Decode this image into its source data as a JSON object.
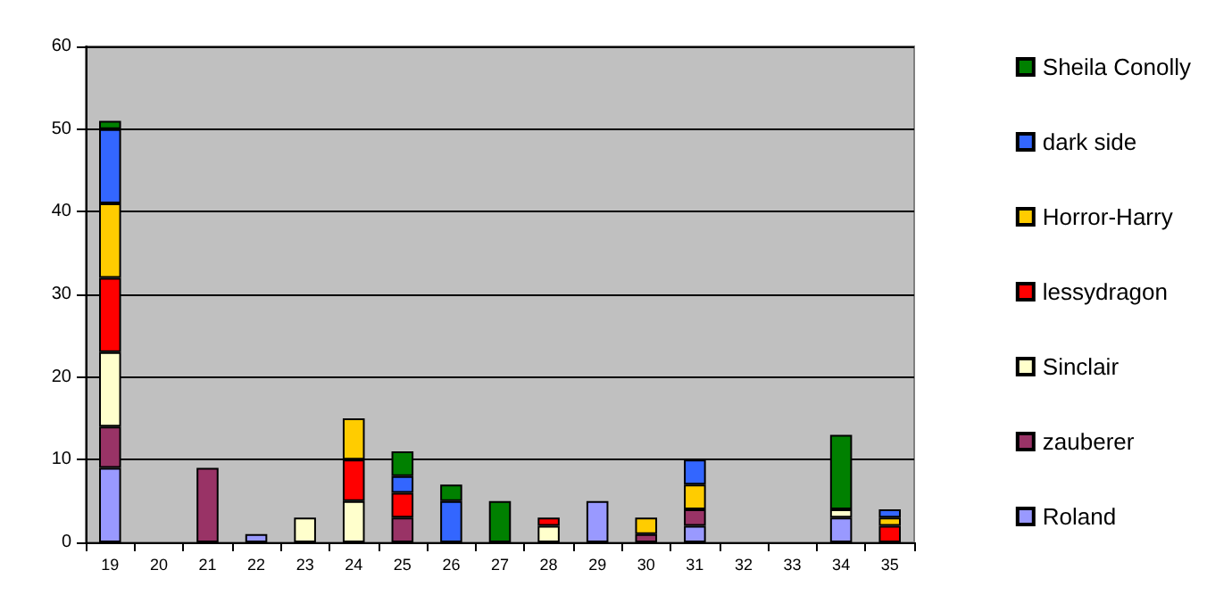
{
  "chart_data": {
    "type": "bar",
    "stacked": true,
    "categories": [
      "19",
      "20",
      "21",
      "22",
      "23",
      "24",
      "25",
      "26",
      "27",
      "28",
      "29",
      "30",
      "31",
      "32",
      "33",
      "34",
      "35"
    ],
    "series": [
      {
        "name": "Roland",
        "color": "#9999ff",
        "values": [
          9,
          null,
          null,
          1,
          null,
          null,
          null,
          null,
          null,
          null,
          5,
          null,
          2,
          null,
          null,
          3,
          null
        ]
      },
      {
        "name": "zauberer",
        "color": "#993366",
        "values": [
          5,
          null,
          9,
          null,
          null,
          null,
          3,
          null,
          null,
          null,
          null,
          1,
          2,
          null,
          null,
          null,
          null
        ]
      },
      {
        "name": "Sinclair",
        "color": "#ffffcc",
        "values": [
          9,
          null,
          null,
          null,
          3,
          5,
          null,
          null,
          null,
          2,
          null,
          null,
          null,
          null,
          null,
          1,
          null
        ]
      },
      {
        "name": "lessydragon",
        "color": "#ff0000",
        "values": [
          9,
          null,
          null,
          null,
          null,
          5,
          3,
          null,
          null,
          1,
          null,
          null,
          null,
          null,
          null,
          null,
          2
        ]
      },
      {
        "name": "Horror-Harry",
        "color": "#ffcc00",
        "values": [
          9,
          null,
          null,
          null,
          null,
          5,
          null,
          null,
          null,
          null,
          null,
          2,
          3,
          null,
          null,
          null,
          1
        ]
      },
      {
        "name": "dark side",
        "color": "#3366ff",
        "values": [
          9,
          null,
          null,
          null,
          null,
          null,
          2,
          5,
          null,
          null,
          null,
          null,
          3,
          null,
          null,
          null,
          1
        ]
      },
      {
        "name": "Sheila Conolly",
        "color": "#008000",
        "values": [
          1,
          null,
          null,
          null,
          null,
          null,
          3,
          2,
          5,
          null,
          null,
          null,
          null,
          null,
          null,
          9,
          null
        ]
      }
    ],
    "ylim": [
      0,
      60
    ],
    "yticks": [
      0,
      10,
      20,
      30,
      40,
      50,
      60
    ],
    "grid": "y",
    "legend": "right"
  }
}
